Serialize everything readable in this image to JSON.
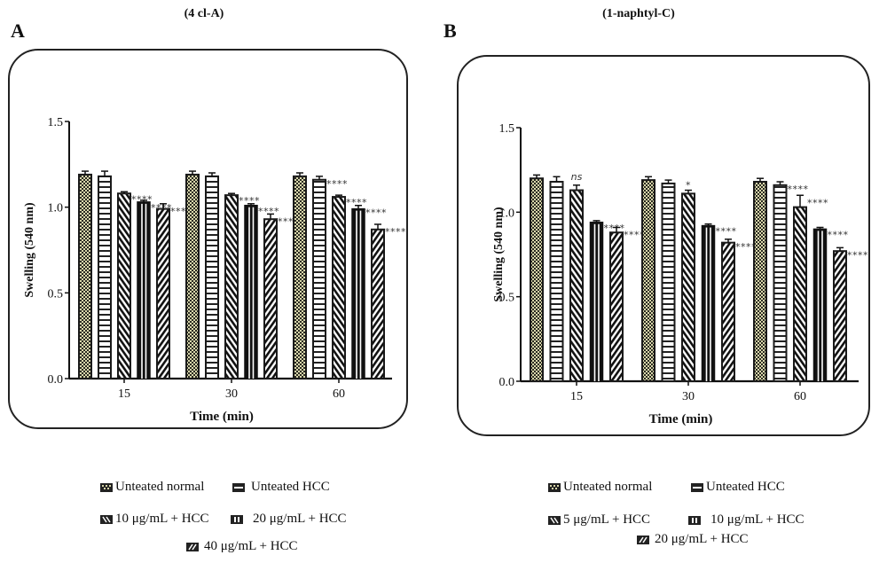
{
  "figure": {
    "panels": [
      {
        "letter": "A",
        "title": "(4 cl-A)",
        "legend": [
          "Unteated normal",
          "Unteated HCC",
          "10 μg/mL + HCC",
          "20 μg/mL + HCC",
          "40 μg/mL + HCC"
        ]
      },
      {
        "letter": "B",
        "title": "(1-naphtyl-C)",
        "legend": [
          "Unteated normal",
          "Unteated HCC",
          "5 μg/mL + HCC",
          "10 μg/mL + HCC",
          "20 μg/mL + HCC"
        ]
      }
    ]
  },
  "chart_data": [
    {
      "type": "bar",
      "title": "(4 cl-A)",
      "panel": "A",
      "xlabel": "Time (min)",
      "ylabel": "Swelling (540 nm)",
      "categories": [
        "15",
        "30",
        "60"
      ],
      "ylim": [
        0,
        1.5
      ],
      "yticks": [
        "0.0",
        "0.5",
        "1.0",
        "1.5"
      ],
      "grid": false,
      "legend_position": "bottom",
      "series": [
        {
          "name": "Unteated normal",
          "pattern": "checker",
          "values": [
            1.19,
            1.19,
            1.18
          ],
          "errors": [
            0.02,
            0.02,
            0.02
          ],
          "annotations": [
            "",
            "",
            ""
          ]
        },
        {
          "name": "Unteated HCC",
          "pattern": "horizontal",
          "values": [
            1.18,
            1.18,
            1.16
          ],
          "errors": [
            0.03,
            0.02,
            0.02
          ],
          "annotations": [
            "",
            "",
            "****"
          ]
        },
        {
          "name": "10 μg/mL + HCC",
          "pattern": "diag-down",
          "values": [
            1.08,
            1.07,
            1.06
          ],
          "errors": [
            0.01,
            0.01,
            0.01
          ],
          "annotations": [
            "****",
            "****",
            "****"
          ]
        },
        {
          "name": "20 μg/mL + HCC",
          "pattern": "vertical",
          "values": [
            1.03,
            1.01,
            0.99
          ],
          "errors": [
            0.01,
            0.01,
            0.02
          ],
          "annotations": [
            "****",
            "****",
            "****"
          ]
        },
        {
          "name": "40 μg/mL + HCC",
          "pattern": "diag-up",
          "values": [
            0.99,
            0.93,
            0.87
          ],
          "errors": [
            0.03,
            0.03,
            0.03
          ],
          "annotations": [
            "****",
            "****",
            "****"
          ]
        }
      ]
    },
    {
      "type": "bar",
      "title": "(1-naphtyl-C)",
      "panel": "B",
      "xlabel": "Time (min)",
      "ylabel": "Swelling (540 nm)",
      "categories": [
        "15",
        "30",
        "60"
      ],
      "ylim": [
        0,
        1.5
      ],
      "yticks": [
        "0.0",
        "0.5",
        "1.0",
        "1.5"
      ],
      "grid": false,
      "legend_position": "bottom",
      "series": [
        {
          "name": "Unteated normal",
          "pattern": "checker",
          "values": [
            1.2,
            1.19,
            1.18
          ],
          "errors": [
            0.02,
            0.02,
            0.02
          ],
          "annotations": [
            "",
            "",
            ""
          ]
        },
        {
          "name": "Unteated HCC",
          "pattern": "horizontal",
          "values": [
            1.18,
            1.17,
            1.16
          ],
          "errors": [
            0.03,
            0.02,
            0.02
          ],
          "annotations": [
            "",
            "",
            "****"
          ]
        },
        {
          "name": "5 μg/mL + HCC",
          "pattern": "diag-down",
          "values": [
            1.13,
            1.11,
            1.03
          ],
          "errors": [
            0.03,
            0.02,
            0.07
          ],
          "annotations": [
            "ns",
            "*",
            "****"
          ]
        },
        {
          "name": "10 μg/mL + HCC",
          "pattern": "vertical",
          "values": [
            0.94,
            0.92,
            0.9
          ],
          "errors": [
            0.01,
            0.01,
            0.01
          ],
          "annotations": [
            "****",
            "****",
            "****"
          ]
        },
        {
          "name": "20 μg/mL + HCC",
          "pattern": "diag-up",
          "values": [
            0.88,
            0.82,
            0.77
          ],
          "errors": [
            0.03,
            0.02,
            0.02
          ],
          "annotations": [
            "****",
            "****",
            "****"
          ]
        }
      ]
    }
  ]
}
